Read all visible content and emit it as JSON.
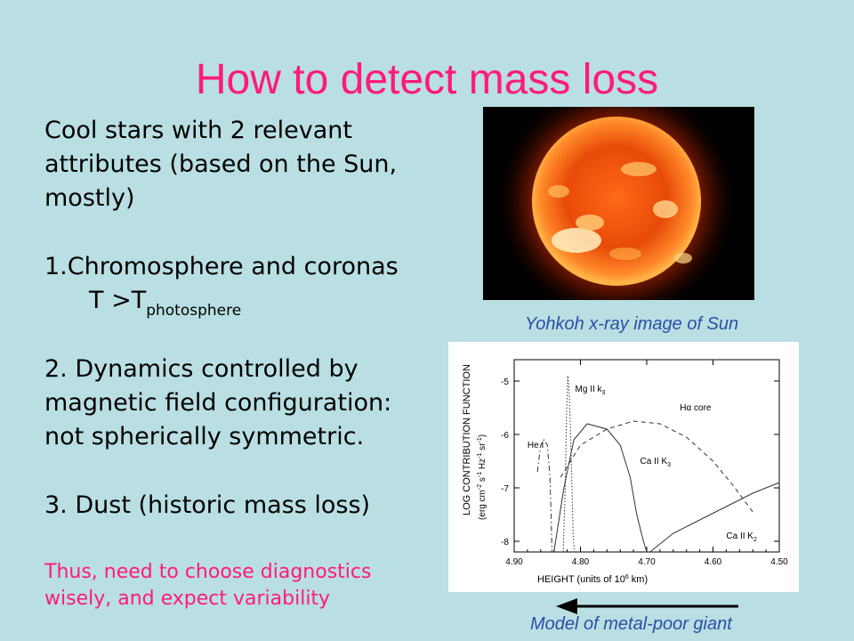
{
  "slide": {
    "title": "How to detect mass loss",
    "intro": [
      "Cool stars with 2 relevant",
      "attributes (based on the Sun,",
      "mostly)"
    ],
    "point1_line1": "1.Chromosphere and coronas",
    "point1_T": "T >T",
    "point1_sub": "photosphere",
    "point2": [
      "2. Dynamics controlled by",
      "magnetic field configuration:",
      "not spherically symmetric."
    ],
    "point3": "3. Dust (historic mass loss)",
    "conclusion": [
      "Thus, need to choose diagnostics",
      "wisely, and expect variability"
    ],
    "sun_caption": "Yohkoh x-ray image of Sun",
    "plot_caption": "Model of metal-poor giant"
  },
  "chart_data": {
    "type": "line",
    "xlabel": "HEIGHT (units of 10",
    "xlabel_sup": "6",
    "xlabel_end": " km)",
    "ylabel_main": "LOG CONTRIBUTION FUNCTION",
    "ylabel_units": "(erg cm",
    "xlim": [
      4.9,
      4.5
    ],
    "ylim": [
      -8.2,
      -4.6
    ],
    "x_ticks": [
      "4.90",
      "4.80",
      "4.70",
      "4.60",
      "4.50"
    ],
    "y_ticks": [
      "-5",
      "-6",
      "-7",
      "-8"
    ],
    "series": [
      {
        "name": "He I",
        "style": "dashdot",
        "x": [
          4.865,
          4.86,
          4.855,
          4.85,
          4.846,
          4.844,
          4.843
        ],
        "y": [
          -6.7,
          -6.2,
          -6.1,
          -6.2,
          -6.8,
          -7.6,
          -8.2
        ]
      },
      {
        "name": "Mg II k3",
        "style": "dotted",
        "x": [
          4.826,
          4.823,
          4.821,
          4.819,
          4.817,
          4.815,
          4.813,
          4.811,
          4.809
        ],
        "y": [
          -8.2,
          -7.0,
          -5.6,
          -4.9,
          -5.2,
          -5.9,
          -6.9,
          -7.9,
          -8.2
        ]
      },
      {
        "name": "Hα core",
        "style": "dashed",
        "x": [
          4.83,
          4.8,
          4.76,
          4.72,
          4.68,
          4.64,
          4.6,
          4.57,
          4.54
        ],
        "y": [
          -6.8,
          -6.2,
          -5.9,
          -5.75,
          -5.8,
          -6.05,
          -6.5,
          -6.95,
          -7.45
        ]
      },
      {
        "name": "Ca II K3",
        "style": "solid",
        "x": [
          4.84,
          4.825,
          4.81,
          4.79,
          4.76,
          4.74,
          4.725,
          4.715,
          4.705,
          4.7
        ],
        "y": [
          -8.2,
          -7.0,
          -6.1,
          -5.8,
          -5.9,
          -6.2,
          -6.8,
          -7.5,
          -8.0,
          -8.2
        ]
      },
      {
        "name": "Ca II K2",
        "style": "solid",
        "x": [
          4.695,
          4.66,
          4.62,
          4.58,
          4.54,
          4.5
        ],
        "y": [
          -8.2,
          -7.85,
          -7.6,
          -7.35,
          -7.1,
          -6.9
        ]
      }
    ],
    "annotations": [
      {
        "text": "He I",
        "x": 4.88,
        "y": -6.25
      },
      {
        "text": "Mg II k",
        "sub": "3",
        "x": 4.808,
        "y": -5.2
      },
      {
        "text": "Hα core",
        "x": 4.65,
        "y": -5.55
      },
      {
        "text": "Ca II K",
        "sub": "3",
        "x": 4.71,
        "y": -6.55
      },
      {
        "text": "Ca II K",
        "sub": "2",
        "x": 4.58,
        "y": -7.95
      }
    ]
  }
}
